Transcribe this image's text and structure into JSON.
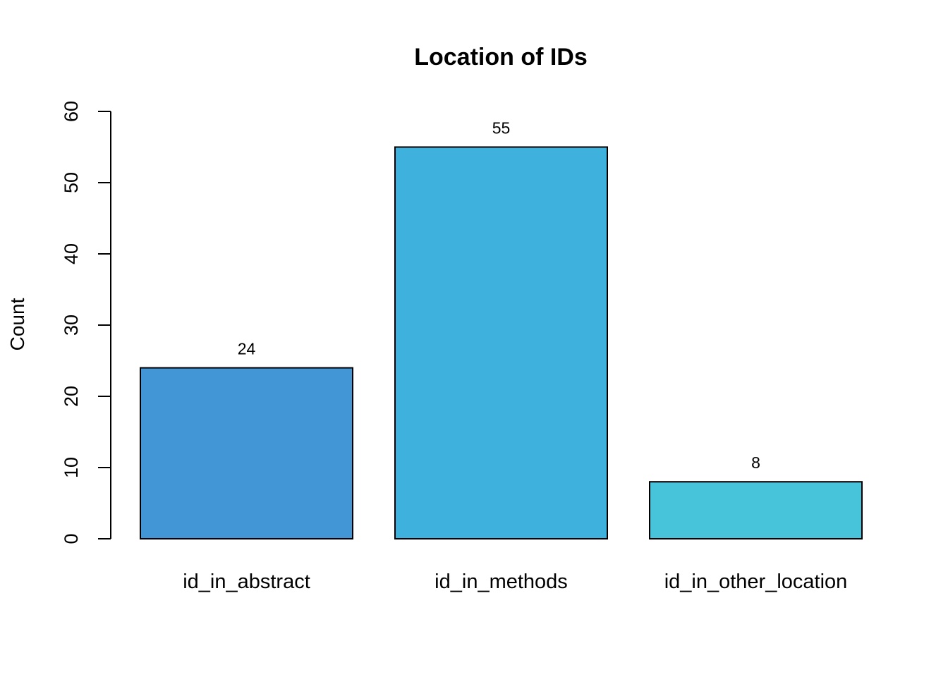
{
  "chart_data": {
    "type": "bar",
    "title": "Location of IDs",
    "xlabel": "",
    "ylabel": "Count",
    "categories": [
      "id_in_abstract",
      "id_in_methods",
      "id_in_other_location"
    ],
    "values": [
      24,
      55,
      8
    ],
    "data_labels": [
      "24",
      "55",
      "8"
    ],
    "colors": [
      "#4396D6",
      "#3FB1DD",
      "#48C4DA"
    ],
    "ylim": [
      0,
      60
    ],
    "yticks": [
      0,
      10,
      20,
      30,
      40,
      50,
      60
    ],
    "grid": false,
    "legend": "none"
  }
}
